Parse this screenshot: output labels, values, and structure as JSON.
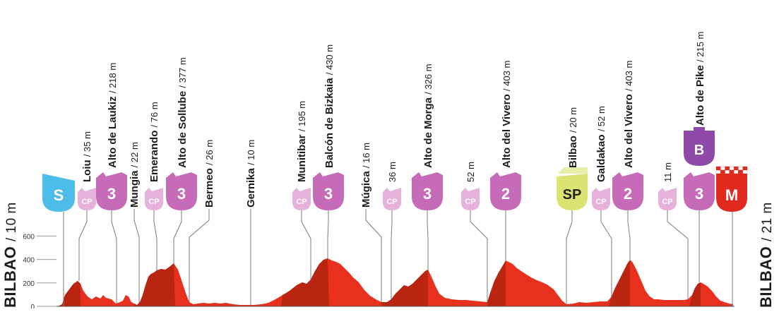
{
  "start": {
    "name": "BILBAO",
    "altitude": "/ 10 m"
  },
  "finish": {
    "name": "BILBAO",
    "altitude": "/ 21 m"
  },
  "y_axis": {
    "ticks": [
      "600",
      "400",
      "200",
      "0"
    ],
    "values": [
      600,
      400,
      200,
      0
    ]
  },
  "colors": {
    "profile": "#e8301f",
    "profile_dark": "#b0230f",
    "cp": "#e6b2dc",
    "cat": "#c66bb8",
    "start": "#4bbde8",
    "sprint": "#dbe372",
    "bonus": "#8f49a8",
    "finish": "#e02a1e",
    "leader": "#7a7a7a"
  },
  "markers": [
    {
      "name": "",
      "alt": "",
      "badge": "S",
      "type": "start"
    },
    {
      "name": "Loiu",
      "alt": "/ 35 m",
      "badge": "CP",
      "type": "cp"
    },
    {
      "name": "Alto de Laukiz",
      "alt": "/ 218 m",
      "badge": "3",
      "type": "cat"
    },
    {
      "name": "Mungia",
      "alt": "/ 22 m",
      "badge": "",
      "type": "town"
    },
    {
      "name": "Emerando",
      "alt": "/ 76 m",
      "badge": "CP",
      "type": "cp"
    },
    {
      "name": "Alto de Sollube",
      "alt": "/ 377 m",
      "badge": "3",
      "type": "cat"
    },
    {
      "name": "Bermeo",
      "alt": "/ 26 m",
      "badge": "",
      "type": "town"
    },
    {
      "name": "Gernika",
      "alt": "/ 10 m",
      "badge": "",
      "type": "town"
    },
    {
      "name": "Munitibar",
      "alt": "/ 195 m",
      "badge": "CP",
      "type": "cp"
    },
    {
      "name": "Balcón de Bizkaia",
      "alt": "/ 430 m",
      "badge": "3",
      "type": "cat"
    },
    {
      "name": "Múgica",
      "alt": "/ 16 m",
      "badge": "",
      "type": "town"
    },
    {
      "name": "",
      "alt": "36 m",
      "badge": "CP",
      "type": "cp"
    },
    {
      "name": "Alto de Morga",
      "alt": "/ 326 m",
      "badge": "3",
      "type": "cat"
    },
    {
      "name": "",
      "alt": "52 m",
      "badge": "CP",
      "type": "cp"
    },
    {
      "name": "Alto del Vivero",
      "alt": "/ 403 m",
      "badge": "2",
      "type": "cat"
    },
    {
      "name": "Bilbao",
      "alt": "/ 20 m",
      "badge": "SP",
      "type": "sprint"
    },
    {
      "name": "Galdakao",
      "alt": "/ 52 m",
      "badge": "CP",
      "type": "cp"
    },
    {
      "name": "Alto del Vivero",
      "alt": "/ 403 m",
      "badge": "2",
      "type": "cat"
    },
    {
      "name": "",
      "alt": "11 m",
      "badge": "CP",
      "type": "cp"
    },
    {
      "name": "Alto de Pike",
      "alt": "/ 215 m",
      "badge": "3",
      "type": "cat",
      "bonus": "B"
    },
    {
      "name": "",
      "alt": "",
      "badge": "M",
      "type": "finish"
    }
  ]
}
